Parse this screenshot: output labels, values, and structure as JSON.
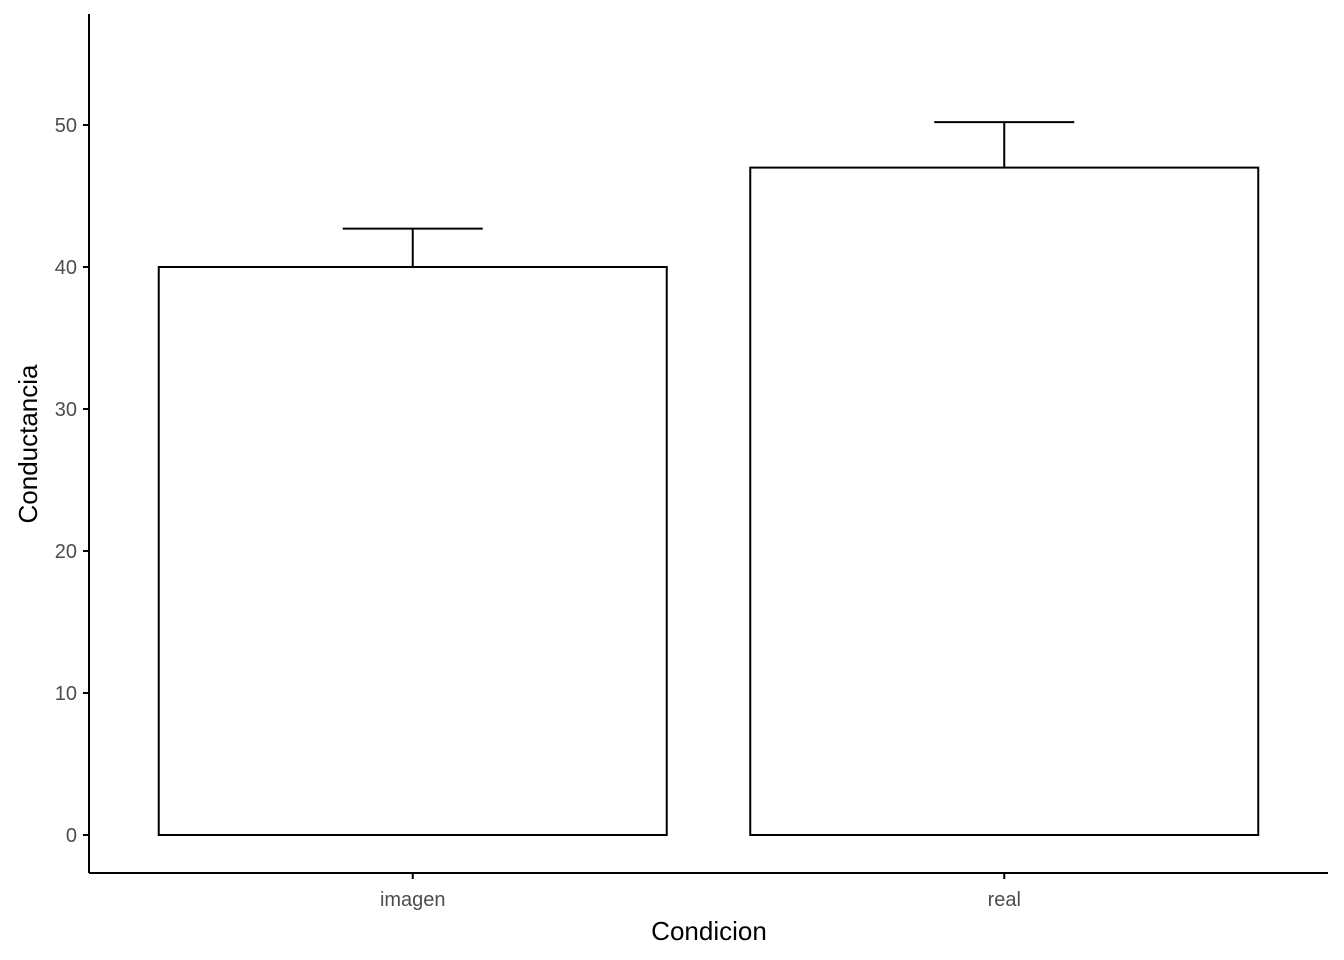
{
  "chart_data": {
    "type": "bar",
    "title": "",
    "xlabel": "Condicion",
    "ylabel": "Conductancia",
    "categories": [
      "imagen",
      "real"
    ],
    "values": [
      40.0,
      47.0
    ],
    "error_upper": [
      42.7,
      50.2
    ],
    "ylim": [
      -2.7,
      57.7
    ],
    "yticks": [
      0,
      10,
      20,
      30,
      40,
      50
    ],
    "ytick_labels": [
      "0",
      "10",
      "20",
      "30",
      "40",
      "50"
    ],
    "grid": false,
    "legend": "none",
    "colors": {
      "bar_fill": "#ffffff",
      "bar_stroke": "#000000",
      "axis": "#000000",
      "tick_text": "#4d4d4d"
    }
  }
}
